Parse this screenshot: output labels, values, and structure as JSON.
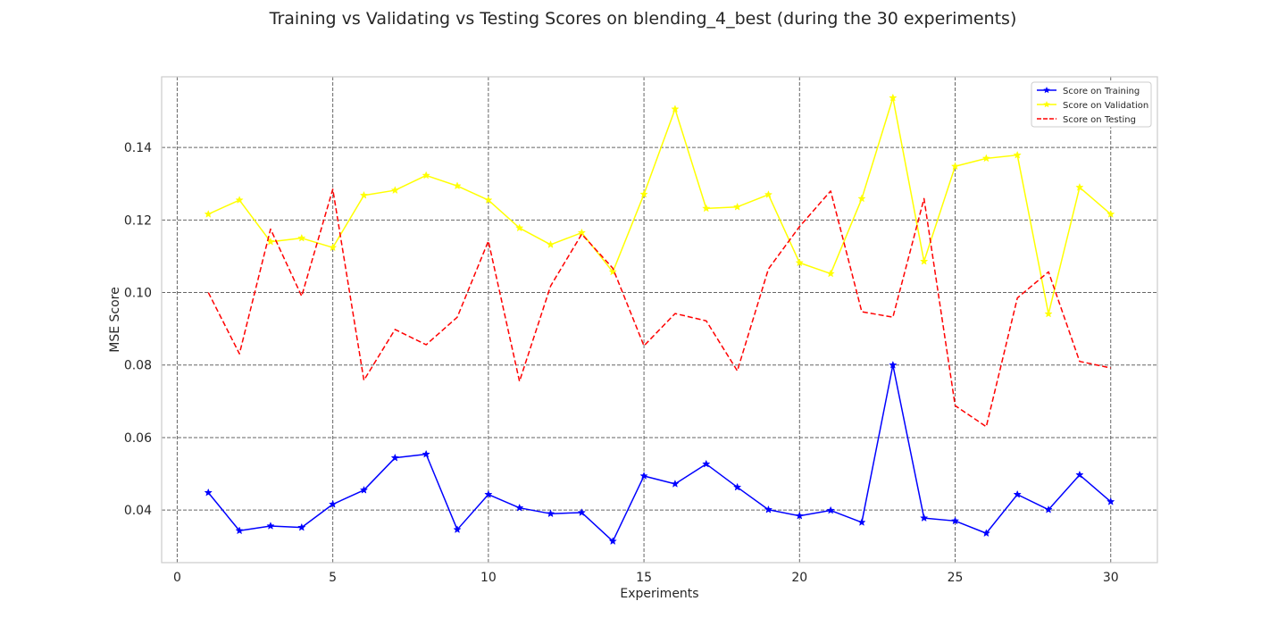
{
  "chart_data": {
    "type": "line",
    "title": "Training vs Validating vs Testing Scores on blending_4_best (during the 30 experiments)",
    "xlabel": "Experiments",
    "ylabel": "MSE Score",
    "xlim": [
      -0.5,
      31.5
    ],
    "ylim": [
      0.0255,
      0.1595
    ],
    "xticks": [
      0,
      5,
      10,
      15,
      20,
      25,
      30
    ],
    "yticks": [
      0.04,
      0.06,
      0.08,
      0.1,
      0.12,
      0.14
    ],
    "ytick_labels": [
      "0.04",
      "0.06",
      "0.08",
      "0.10",
      "0.12",
      "0.14"
    ],
    "grid": true,
    "legend_position": "top-right",
    "x": [
      1,
      2,
      3,
      4,
      5,
      6,
      7,
      8,
      9,
      10,
      11,
      12,
      13,
      14,
      15,
      16,
      17,
      18,
      19,
      20,
      21,
      22,
      23,
      24,
      25,
      26,
      27,
      28,
      29,
      30
    ],
    "series": [
      {
        "name": "Score on Training",
        "color": "#0000ff",
        "style": "solid",
        "marker": "star",
        "values": [
          0.0448,
          0.0343,
          0.0356,
          0.0352,
          0.0416,
          0.0455,
          0.0544,
          0.0554,
          0.0346,
          0.0443,
          0.0406,
          0.039,
          0.0393,
          0.0314,
          0.0494,
          0.0472,
          0.0527,
          0.0463,
          0.0401,
          0.0384,
          0.0399,
          0.0366,
          0.08,
          0.0378,
          0.037,
          0.0336,
          0.0443,
          0.0401,
          0.0497,
          0.0423
        ]
      },
      {
        "name": "Score on Validation",
        "color": "#ffff00",
        "style": "solid",
        "marker": "star",
        "values": [
          0.1216,
          0.1255,
          0.114,
          0.115,
          0.1124,
          0.1268,
          0.1282,
          0.1323,
          0.1294,
          0.1255,
          0.1178,
          0.1132,
          0.1165,
          0.1057,
          0.1271,
          0.1506,
          0.1232,
          0.1236,
          0.127,
          0.1082,
          0.1052,
          0.1259,
          0.1537,
          0.1086,
          0.1348,
          0.137,
          0.1379,
          0.0941,
          0.129,
          0.1216
        ]
      },
      {
        "name": "Score on Testing",
        "color": "#ff0000",
        "style": "dashed",
        "marker": "none",
        "values": [
          0.1,
          0.0831,
          0.1175,
          0.099,
          0.1285,
          0.0758,
          0.0898,
          0.0856,
          0.0932,
          0.1142,
          0.0755,
          0.1018,
          0.1161,
          0.1067,
          0.0853,
          0.0942,
          0.0922,
          0.0784,
          0.1065,
          0.1182,
          0.128,
          0.0947,
          0.0932,
          0.1259,
          0.0688,
          0.063,
          0.0985,
          0.1057,
          0.081,
          0.0792
        ]
      }
    ]
  }
}
